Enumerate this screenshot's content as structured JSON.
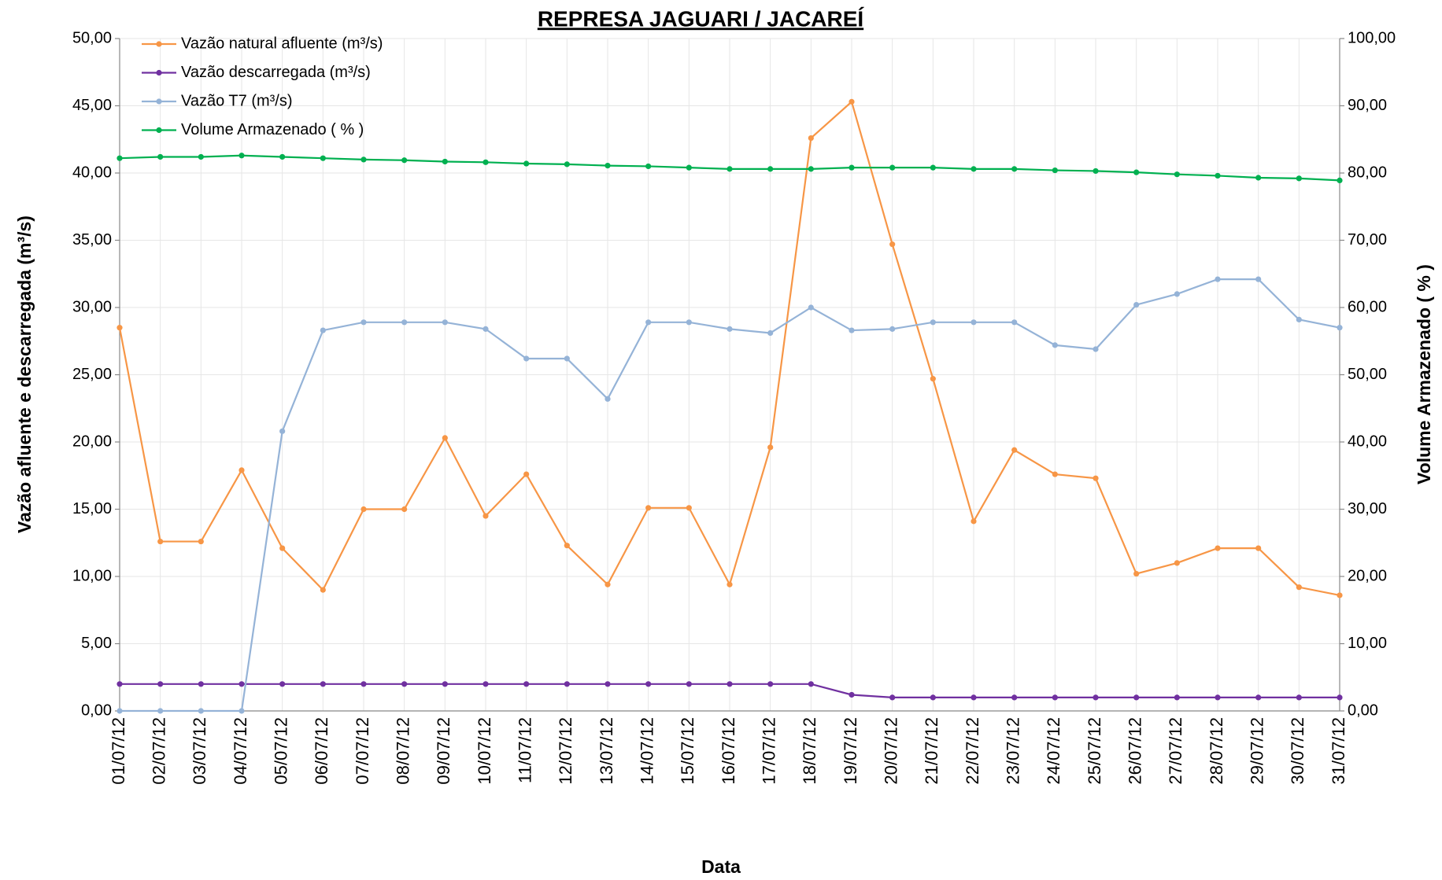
{
  "chart_data": {
    "type": "line",
    "title": "REPRESA JAGUARI / JACAREÍ",
    "x_label": "Data",
    "y_label": "Vazão afluente e descarregada (m³/s)",
    "y2_label": "Volume Armazenado ( % )",
    "categories": [
      "01/07/12",
      "02/07/12",
      "03/07/12",
      "04/07/12",
      "05/07/12",
      "06/07/12",
      "07/07/12",
      "08/07/12",
      "09/07/12",
      "10/07/12",
      "11/07/12",
      "12/07/12",
      "13/07/12",
      "14/07/12",
      "15/07/12",
      "16/07/12",
      "17/07/12",
      "18/07/12",
      "19/07/12",
      "20/07/12",
      "21/07/12",
      "22/07/12",
      "23/07/12",
      "24/07/12",
      "25/07/12",
      "26/07/12",
      "27/07/12",
      "28/07/12",
      "29/07/12",
      "30/07/12",
      "31/07/12"
    ],
    "series": [
      {
        "name": "Vazão natural afluente (m³/s)",
        "color": "#f79646",
        "axis": "y",
        "values": [
          28.5,
          12.6,
          12.6,
          17.9,
          12.1,
          9.0,
          15.0,
          15.0,
          20.3,
          14.5,
          17.6,
          12.3,
          9.4,
          15.1,
          15.1,
          9.4,
          19.6,
          42.6,
          45.3,
          34.7,
          24.7,
          14.1,
          19.4,
          17.6,
          17.3,
          10.2,
          11.0,
          12.1,
          12.1,
          9.2,
          8.6
        ]
      },
      {
        "name": "Vazão descarregada (m³/s)",
        "color": "#7030a0",
        "axis": "y",
        "values": [
          2.0,
          2.0,
          2.0,
          2.0,
          2.0,
          2.0,
          2.0,
          2.0,
          2.0,
          2.0,
          2.0,
          2.0,
          2.0,
          2.0,
          2.0,
          2.0,
          2.0,
          2.0,
          1.2,
          1.0,
          1.0,
          1.0,
          1.0,
          1.0,
          1.0,
          1.0,
          1.0,
          1.0,
          1.0,
          1.0,
          1.0
        ]
      },
      {
        "name": "Vazão T7 (m³/s)",
        "color": "#95b3d7",
        "axis": "y",
        "values": [
          0,
          0,
          0,
          0,
          20.8,
          28.3,
          28.9,
          28.9,
          28.9,
          28.4,
          26.2,
          26.2,
          23.2,
          28.9,
          28.9,
          28.4,
          28.1,
          30.0,
          28.3,
          28.4,
          28.9,
          28.9,
          28.9,
          27.2,
          26.9,
          30.2,
          31.0,
          32.1,
          32.1,
          29.1,
          28.5
        ]
      },
      {
        "name": "Volume Armazenado ( % )",
        "color": "#00b050",
        "axis": "y2",
        "values": [
          82.2,
          82.4,
          82.4,
          82.6,
          82.4,
          82.2,
          82.0,
          81.9,
          81.7,
          81.6,
          81.4,
          81.3,
          81.1,
          81.0,
          80.8,
          80.6,
          80.6,
          80.6,
          80.8,
          80.8,
          80.8,
          80.6,
          80.6,
          80.4,
          80.3,
          80.1,
          79.8,
          79.6,
          79.3,
          79.2,
          78.9
        ]
      }
    ],
    "ylim": [
      0,
      50
    ],
    "yticks": [
      {
        "value": 0,
        "label": "0,00"
      },
      {
        "value": 5,
        "label": "5,00"
      },
      {
        "value": 10,
        "label": "10,00"
      },
      {
        "value": 15,
        "label": "15,00"
      },
      {
        "value": 20,
        "label": "20,00"
      },
      {
        "value": 25,
        "label": "25,00"
      },
      {
        "value": 30,
        "label": "30,00"
      },
      {
        "value": 35,
        "label": "35,00"
      },
      {
        "value": 40,
        "label": "40,00"
      },
      {
        "value": 45,
        "label": "45,00"
      },
      {
        "value": 50,
        "label": "50,00"
      }
    ],
    "y2lim": [
      0,
      100
    ],
    "y2ticks": [
      {
        "value": 0,
        "label": "0,00"
      },
      {
        "value": 10,
        "label": "10,00"
      },
      {
        "value": 20,
        "label": "20,00"
      },
      {
        "value": 30,
        "label": "30,00"
      },
      {
        "value": 40,
        "label": "40,00"
      },
      {
        "value": 50,
        "label": "50,00"
      },
      {
        "value": 60,
        "label": "60,00"
      },
      {
        "value": 70,
        "label": "70,00"
      },
      {
        "value": 80,
        "label": "80,00"
      },
      {
        "value": 90,
        "label": "90,00"
      },
      {
        "value": 100,
        "label": "100,00"
      }
    ],
    "grid": true,
    "legend": "upper-left"
  }
}
